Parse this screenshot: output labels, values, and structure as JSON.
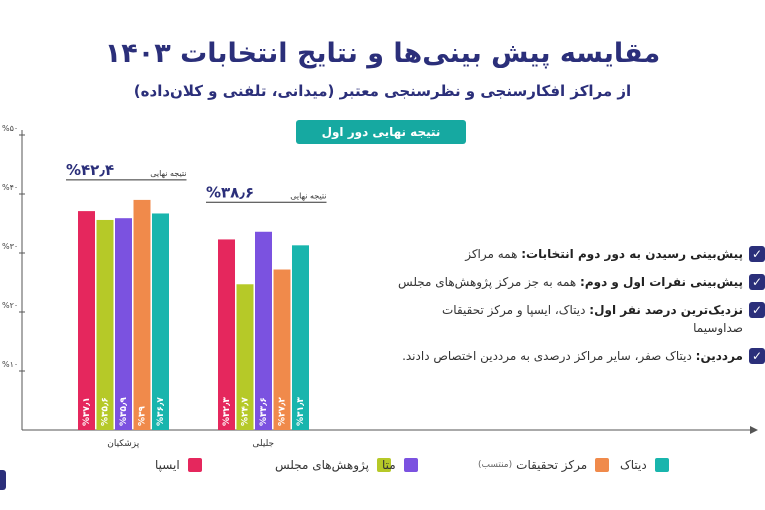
{
  "title": "مقایسه پیش بینی‌ها و نتایج انتخابات ۱۴۰۳",
  "subtitle": "از مراکز افکارسنجی و نظرسنجی معتبر (میدانی، تلفنی و کلان‌داده)",
  "result_badge": "نتیجه نهایی دور اول انتخابات",
  "bullets": [
    {
      "head": "پیش‌بینی رسیدن به دور دوم انتخابات:",
      "text": " همه مراکز"
    },
    {
      "head": "پیش‌بینی نفرات اول و دوم:",
      "text": " همه به جز مرکز پژوهش‌های مجلس"
    },
    {
      "head": "نزدیک‌ترین درصد نفر اول:",
      "text": " دیتاک، ایسپا و مرکز تحقیقات صداوسیما"
    },
    {
      "head": "مرددین:",
      "text": " دیتاک صفر، سایر مراکز درصدی به مرددین اختصاص دادند."
    }
  ],
  "legend": [
    {
      "label": "ایسپا",
      "color": "#e5275d"
    },
    {
      "label": "پژوهش‌های مجلس",
      "color": "#b6c928"
    },
    {
      "label": "متا",
      "color": "#7b52e0"
    },
    {
      "label": "مرکز تحقیقات",
      "note": "(منتسب)",
      "color": "#f08a4b"
    },
    {
      "label": "دیتاک",
      "color": "#19b5ad"
    }
  ],
  "icons": {
    "check": "check-icon"
  },
  "chart_data": {
    "type": "bar",
    "categories": [
      "پزشکیان",
      "جلیلی"
    ],
    "series": [
      {
        "name": "ایسپا",
        "color": "#e5275d",
        "values": [
          37.1,
          32.3
        ],
        "labels": [
          "%۳۷٫۱",
          "%۳۲٫۳"
        ]
      },
      {
        "name": "پژوهش‌های مجلس",
        "color": "#b6c928",
        "values": [
          35.6,
          24.7
        ],
        "labels": [
          "%۳۵٫۶",
          "%۲۴٫۷"
        ]
      },
      {
        "name": "متا",
        "color": "#7b52e0",
        "values": [
          35.9,
          33.6
        ],
        "labels": [
          "%۳۵٫۹",
          "%۳۳٫۶"
        ]
      },
      {
        "name": "مرکز تحقیقات",
        "color": "#f08a4b",
        "values": [
          39.0,
          27.2
        ],
        "labels": [
          "%۳۹",
          "%۲۷٫۲"
        ]
      },
      {
        "name": "دیتاک",
        "color": "#19b5ad",
        "values": [
          36.7,
          31.3
        ],
        "labels": [
          "%۳۶٫۷",
          "%۳۱٫۳"
        ]
      }
    ],
    "final_results": [
      {
        "label": "نتیجه نهایی",
        "value": 42.4,
        "value_text": "%۴۲٫۴"
      },
      {
        "label": "نتیجه نهایی",
        "value": 38.6,
        "value_text": "%۳۸٫۶"
      }
    ],
    "ylim": [
      0,
      50
    ],
    "yticks": [
      10,
      20,
      30,
      40,
      50
    ],
    "ytick_labels": [
      "%۱۰",
      "%۲۰",
      "%۳۰",
      "%۴۰",
      "%۵۰"
    ],
    "grid": false,
    "legend_position": "bottom"
  }
}
